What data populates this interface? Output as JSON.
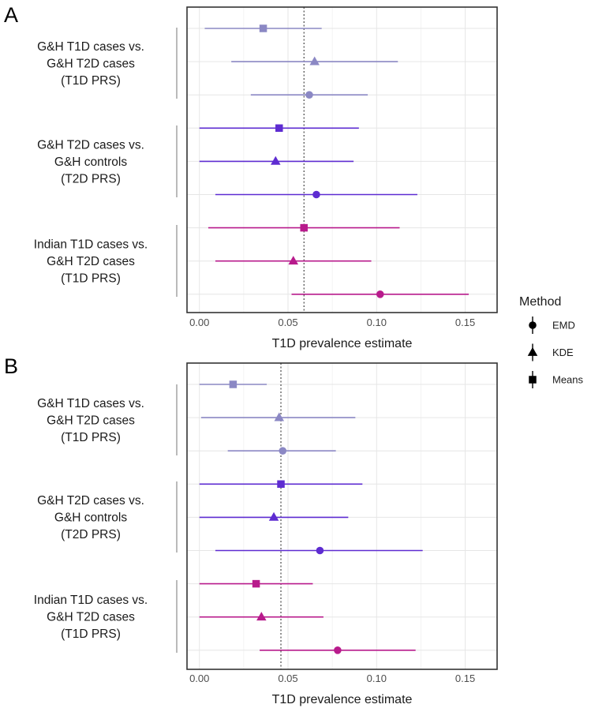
{
  "legend": {
    "title": "Method",
    "items": [
      {
        "label": "EMD",
        "shape": "circle"
      },
      {
        "label": "KDE",
        "shape": "triangle"
      },
      {
        "label": "Means",
        "shape": "square"
      }
    ]
  },
  "colors": {
    "group1": "#8b88c4",
    "group2": "#5e2cd1",
    "group3": "#b81b8c",
    "grid": "#e6e6e6",
    "panel_border": "#333333",
    "bracket": "#8c8c8c",
    "reference_line": "#222222"
  },
  "chart_data": [
    {
      "type": "forest",
      "panel": "A",
      "xlabel": "T1D prevalence estimate",
      "xlim": [
        -0.007,
        0.168
      ],
      "xticks": [
        0.0,
        0.05,
        0.1,
        0.15
      ],
      "xtick_labels": [
        "0.00",
        "0.05",
        "0.10",
        "0.15"
      ],
      "reference_x": 0.059,
      "groups": [
        {
          "label_lines": [
            "G&H T1D cases vs.",
            "G&H T2D cases",
            "(T1D PRS)"
          ],
          "color_key": "group1",
          "estimates": [
            {
              "method": "Means",
              "value": 0.036,
              "lower": 0.003,
              "upper": 0.069
            },
            {
              "method": "KDE",
              "value": 0.065,
              "lower": 0.018,
              "upper": 0.112
            },
            {
              "method": "EMD",
              "value": 0.062,
              "lower": 0.029,
              "upper": 0.095
            }
          ]
        },
        {
          "label_lines": [
            "G&H T2D cases vs.",
            "G&H controls",
            "(T2D PRS)"
          ],
          "color_key": "group2",
          "estimates": [
            {
              "method": "Means",
              "value": 0.045,
              "lower": 0.0,
              "upper": 0.09
            },
            {
              "method": "KDE",
              "value": 0.043,
              "lower": 0.0,
              "upper": 0.087
            },
            {
              "method": "EMD",
              "value": 0.066,
              "lower": 0.009,
              "upper": 0.123
            }
          ]
        },
        {
          "label_lines": [
            "Indian T1D cases vs.",
            "G&H T2D cases",
            "(T1D PRS)"
          ],
          "color_key": "group3",
          "estimates": [
            {
              "method": "Means",
              "value": 0.059,
              "lower": 0.005,
              "upper": 0.113
            },
            {
              "method": "KDE",
              "value": 0.053,
              "lower": 0.009,
              "upper": 0.097
            },
            {
              "method": "EMD",
              "value": 0.102,
              "lower": 0.052,
              "upper": 0.152
            }
          ]
        }
      ]
    },
    {
      "type": "forest",
      "panel": "B",
      "xlabel": "T1D prevalence estimate",
      "xlim": [
        -0.007,
        0.168
      ],
      "xticks": [
        0.0,
        0.05,
        0.1,
        0.15
      ],
      "xtick_labels": [
        "0.00",
        "0.05",
        "0.10",
        "0.15"
      ],
      "reference_x": 0.046,
      "groups": [
        {
          "label_lines": [
            "G&H T1D cases vs.",
            "G&H T2D cases",
            "(T1D PRS)"
          ],
          "color_key": "group1",
          "estimates": [
            {
              "method": "Means",
              "value": 0.019,
              "lower": 0.0,
              "upper": 0.038
            },
            {
              "method": "KDE",
              "value": 0.045,
              "lower": 0.001,
              "upper": 0.088
            },
            {
              "method": "EMD",
              "value": 0.047,
              "lower": 0.016,
              "upper": 0.077
            }
          ]
        },
        {
          "label_lines": [
            "G&H T2D cases vs.",
            "G&H controls",
            "(T2D PRS)"
          ],
          "color_key": "group2",
          "estimates": [
            {
              "method": "Means",
              "value": 0.046,
              "lower": 0.0,
              "upper": 0.092
            },
            {
              "method": "KDE",
              "value": 0.042,
              "lower": 0.0,
              "upper": 0.084
            },
            {
              "method": "EMD",
              "value": 0.068,
              "lower": 0.009,
              "upper": 0.126
            }
          ]
        },
        {
          "label_lines": [
            "Indian T1D cases vs.",
            "G&H T2D cases",
            "(T1D PRS)"
          ],
          "color_key": "group3",
          "estimates": [
            {
              "method": "Means",
              "value": 0.032,
              "lower": 0.0,
              "upper": 0.064
            },
            {
              "method": "KDE",
              "value": 0.035,
              "lower": 0.0,
              "upper": 0.07
            },
            {
              "method": "EMD",
              "value": 0.078,
              "lower": 0.034,
              "upper": 0.122
            }
          ]
        }
      ]
    }
  ]
}
